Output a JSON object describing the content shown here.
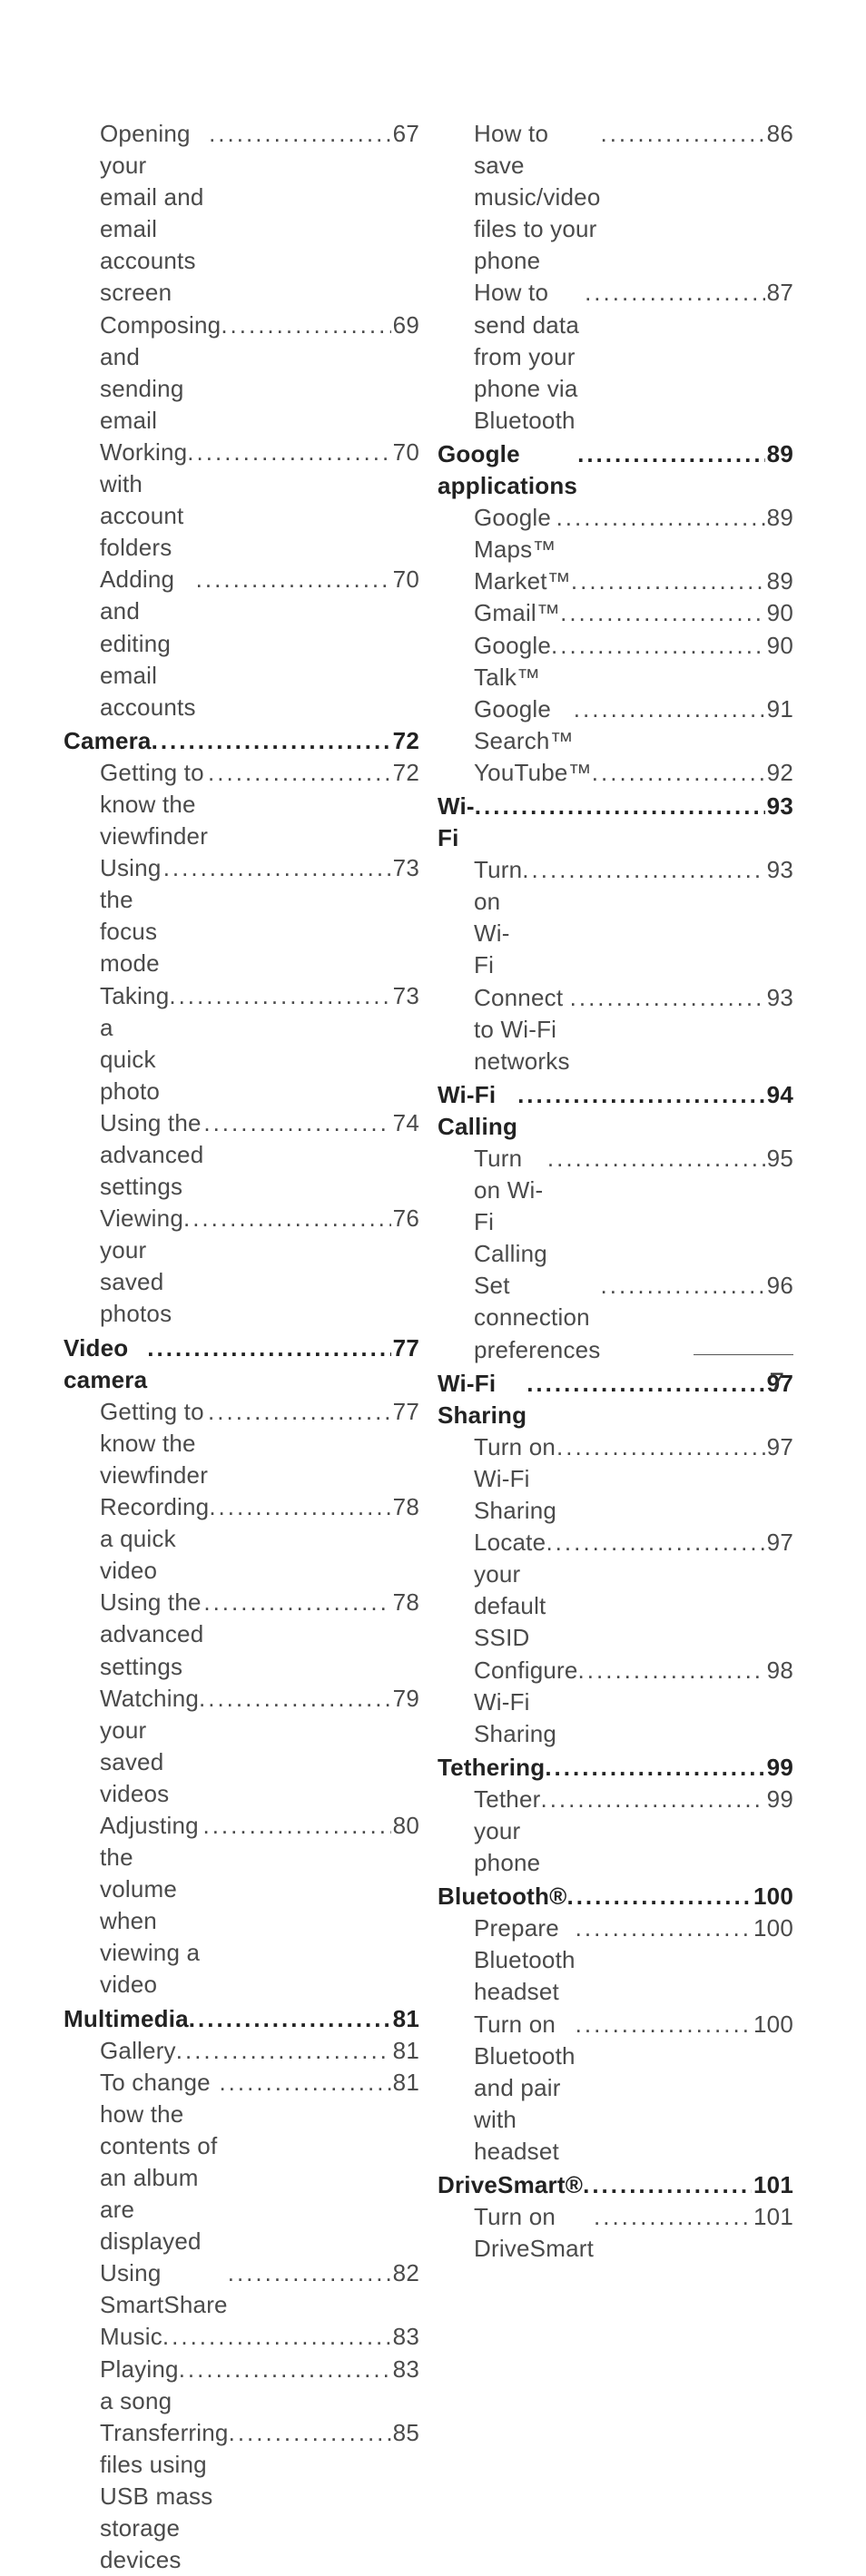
{
  "page_number": "7",
  "columns": [
    {
      "entries": [
        {
          "label": "Opening your email and email accounts screen",
          "page": "67",
          "section": false
        },
        {
          "label": "Composing and sending email",
          "page": "69",
          "section": false
        },
        {
          "label": "Working with account folders",
          "page": "70",
          "section": false
        },
        {
          "label": "Adding and editing email accounts",
          "page": "70",
          "section": false
        },
        {
          "label": "Camera",
          "page": "72",
          "section": true
        },
        {
          "label": "Getting to know the viewfinder",
          "page": "72",
          "section": false
        },
        {
          "label": "Using the focus mode",
          "page": "73",
          "section": false
        },
        {
          "label": "Taking a quick photo",
          "page": "73",
          "section": false
        },
        {
          "label": "Using the advanced settings",
          "page": "74",
          "section": false
        },
        {
          "label": "Viewing your saved photos",
          "page": "76",
          "section": false
        },
        {
          "label": "Video camera",
          "page": "77",
          "section": true
        },
        {
          "label": "Getting to know the viewfinder",
          "page": "77",
          "section": false
        },
        {
          "label": "Recording a quick video",
          "page": "78",
          "section": false
        },
        {
          "label": "Using the advanced settings",
          "page": "78",
          "section": false
        },
        {
          "label": "Watching your saved videos",
          "page": "79",
          "section": false
        },
        {
          "label": "Adjusting the volume when viewing a video",
          "page": "80",
          "section": false
        },
        {
          "label": "Multimedia",
          "page": "81",
          "section": true
        },
        {
          "label": "Gallery",
          "page": "81",
          "section": false
        },
        {
          "label": "To change how the contents of an album are displayed",
          "page": "81",
          "section": false
        },
        {
          "label": "Using SmartShare",
          "page": "82",
          "section": false
        },
        {
          "label": "Music",
          "page": "83",
          "section": false
        },
        {
          "label": "Playing a song",
          "page": "83",
          "section": false
        },
        {
          "label": "Transferring files using USB mass storage devices",
          "page": "85",
          "section": false
        }
      ]
    },
    {
      "entries": [
        {
          "label": "How to save music/video files to your phone",
          "page": "86",
          "section": false
        },
        {
          "label": "How to send data from your phone via Bluetooth",
          "page": "87",
          "section": false
        },
        {
          "label": "Google applications",
          "page": "89",
          "section": true
        },
        {
          "label": "Google Maps™",
          "page": "89",
          "section": false
        },
        {
          "label": "Market™",
          "page": "89",
          "section": false
        },
        {
          "label": "Gmail™",
          "page": "90",
          "section": false
        },
        {
          "label": "Google Talk™",
          "page": "90",
          "section": false
        },
        {
          "label": "Google Search™",
          "page": "91",
          "section": false
        },
        {
          "label": "YouTube™",
          "page": "92",
          "section": false
        },
        {
          "label": "Wi-Fi",
          "page": "93",
          "section": true
        },
        {
          "label": "Turn on Wi-Fi",
          "page": "93",
          "section": false
        },
        {
          "label": "Connect to Wi-Fi networks",
          "page": "93",
          "section": false
        },
        {
          "label": "Wi-Fi Calling",
          "page": "94",
          "section": true
        },
        {
          "label": "Turn on Wi-Fi Calling",
          "page": "95",
          "section": false
        },
        {
          "label": "Set connection preferences",
          "page": "96",
          "section": false
        },
        {
          "label": "Wi-Fi Sharing",
          "page": "97",
          "section": true
        },
        {
          "label": "Turn on Wi-Fi Sharing",
          "page": "97",
          "section": false
        },
        {
          "label": "Locate your default SSID",
          "page": "97",
          "section": false
        },
        {
          "label": "Configure Wi-Fi Sharing",
          "page": "98",
          "section": false
        },
        {
          "label": "Tethering",
          "page": "99",
          "section": true
        },
        {
          "label": "Tether your phone",
          "page": "99",
          "section": false
        },
        {
          "label": "Bluetooth®",
          "page": "100",
          "section": true
        },
        {
          "label": "Prepare Bluetooth headset",
          "page": "100",
          "section": false
        },
        {
          "label": "Turn on Bluetooth and pair with headset",
          "page": "100",
          "section": false
        },
        {
          "label": "DriveSmart®",
          "page": "101",
          "section": true
        },
        {
          "label": "Turn on DriveSmart",
          "page": "101",
          "section": false
        }
      ]
    }
  ]
}
